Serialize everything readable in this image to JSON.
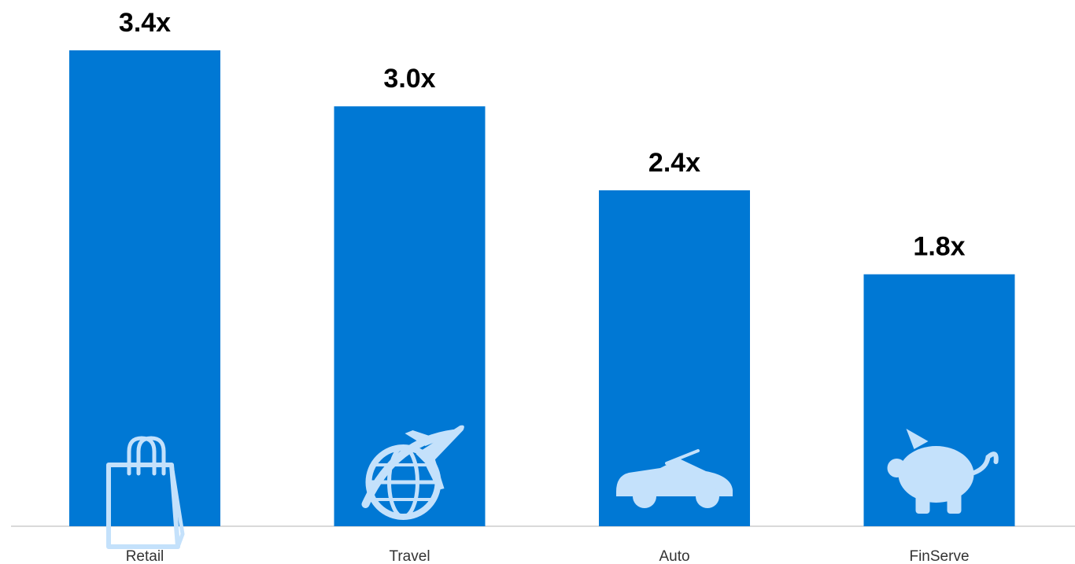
{
  "chart_data": {
    "type": "bar",
    "categories": [
      "Retail",
      "Travel",
      "Auto",
      "FinServe"
    ],
    "values": [
      3.4,
      3.0,
      2.4,
      1.8
    ],
    "value_labels": [
      "3.4x",
      "3.0x",
      "2.4x",
      "1.8x"
    ],
    "icons": [
      "shopping-bag-icon",
      "globe-airplane-icon",
      "convertible-car-icon",
      "piggy-bank-icon"
    ],
    "title": "",
    "xlabel": "",
    "ylabel": "",
    "ylim": [
      0,
      3.4
    ],
    "grid": false,
    "legend": "none"
  },
  "colors": {
    "bar": "#0078d4",
    "icon": "#c4e1fb",
    "baseline": "#d9d9d9",
    "value_text": "#000000",
    "category_text": "#333333"
  }
}
